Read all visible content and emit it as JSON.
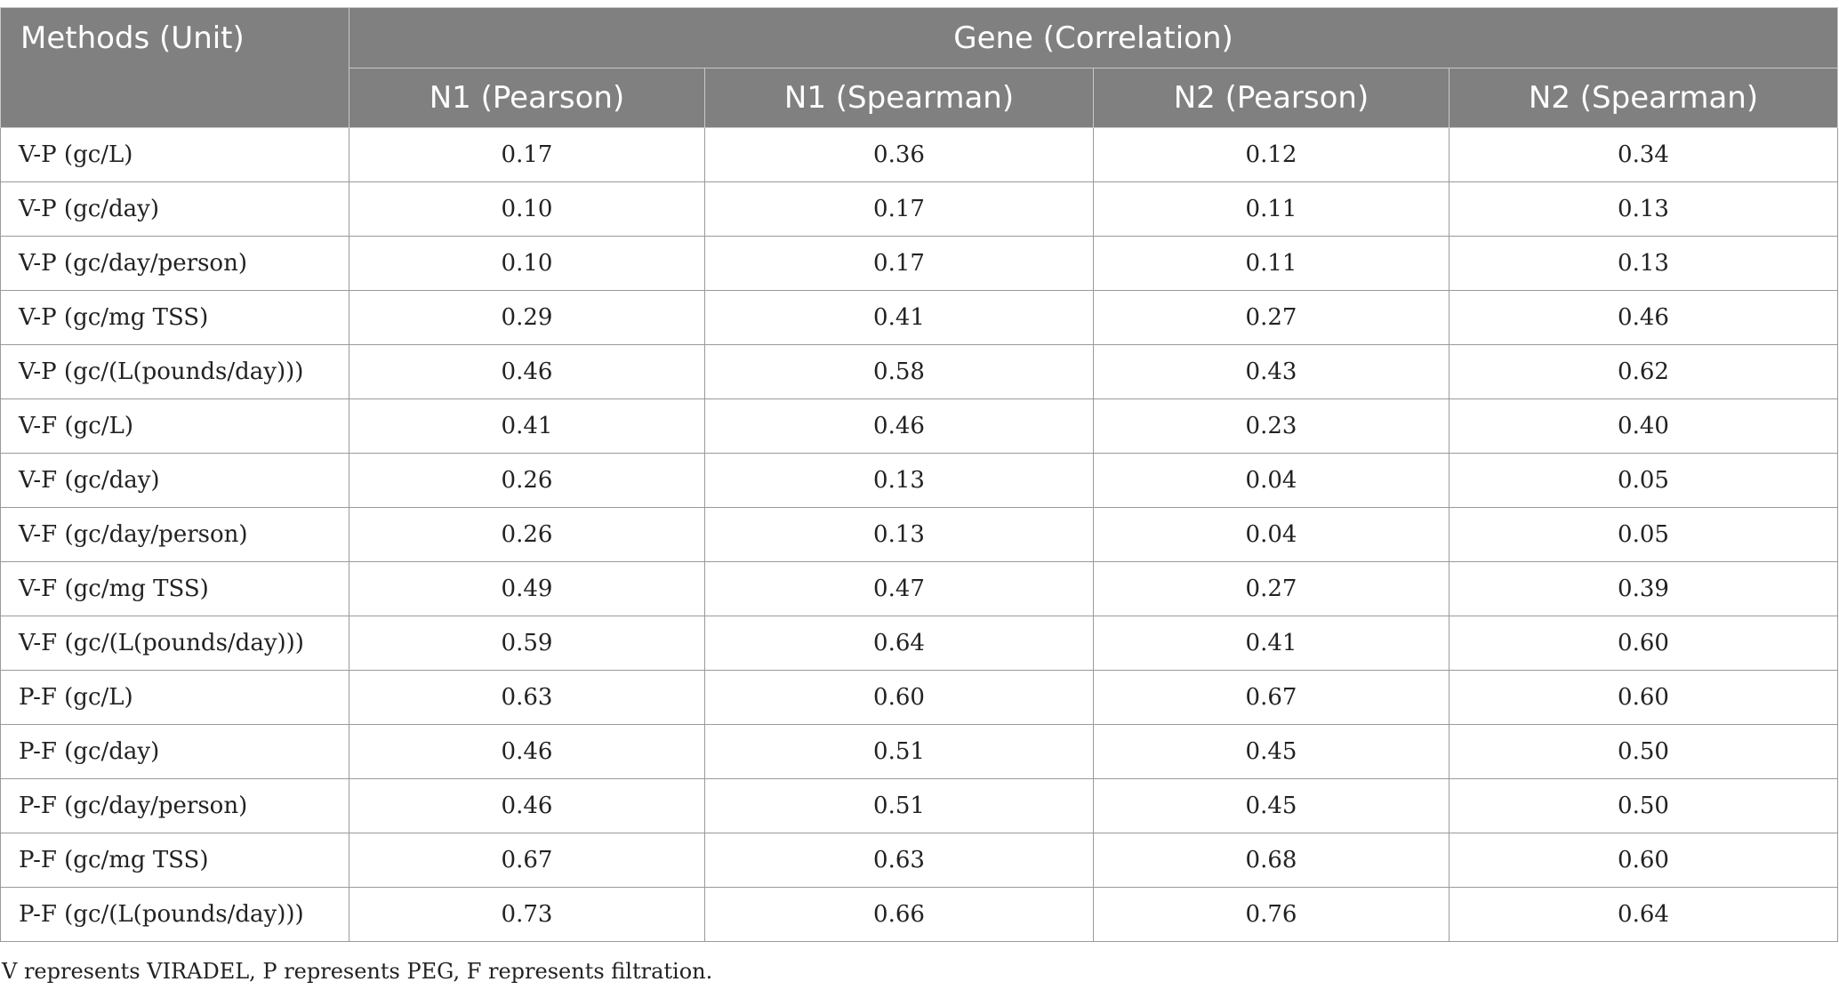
{
  "table": {
    "header": {
      "methods_label": "Methods (Unit)",
      "group_label": "Gene (Correlation)",
      "columns": [
        "N1 (Pearson)",
        "N1 (Spearman)",
        "N2 (Pearson)",
        "N2 (Spearman)"
      ]
    },
    "rows": [
      {
        "label": "V-P (gc/L)",
        "values": [
          "0.17",
          "0.36",
          "0.12",
          "0.34"
        ]
      },
      {
        "label": "V-P (gc/day)",
        "values": [
          "0.10",
          "0.17",
          "0.11",
          "0.13"
        ]
      },
      {
        "label": "V-P (gc/day/person)",
        "values": [
          "0.10",
          "0.17",
          "0.11",
          "0.13"
        ]
      },
      {
        "label": "V-P (gc/mg TSS)",
        "values": [
          "0.29",
          "0.41",
          "0.27",
          "0.46"
        ]
      },
      {
        "label": "V-P (gc/(L(pounds/day)))",
        "values": [
          "0.46",
          "0.58",
          "0.43",
          "0.62"
        ]
      },
      {
        "label": "V-F (gc/L)",
        "values": [
          "0.41",
          "0.46",
          "0.23",
          "0.40"
        ]
      },
      {
        "label": "V-F (gc/day)",
        "values": [
          "0.26",
          "0.13",
          "0.04",
          "0.05"
        ]
      },
      {
        "label": "V-F (gc/day/person)",
        "values": [
          "0.26",
          "0.13",
          "0.04",
          "0.05"
        ]
      },
      {
        "label": "V-F (gc/mg TSS)",
        "values": [
          "0.49",
          "0.47",
          "0.27",
          "0.39"
        ]
      },
      {
        "label": "V-F (gc/(L(pounds/day)))",
        "values": [
          "0.59",
          "0.64",
          "0.41",
          "0.60"
        ]
      },
      {
        "label": "P-F (gc/L)",
        "values": [
          "0.63",
          "0.60",
          "0.67",
          "0.60"
        ]
      },
      {
        "label": "P-F (gc/day)",
        "values": [
          "0.46",
          "0.51",
          "0.45",
          "0.50"
        ]
      },
      {
        "label": "P-F (gc/day/person)",
        "values": [
          "0.46",
          "0.51",
          "0.45",
          "0.50"
        ]
      },
      {
        "label": "P-F (gc/mg TSS)",
        "values": [
          "0.67",
          "0.63",
          "0.68",
          "0.60"
        ]
      },
      {
        "label": "P-F (gc/(L(pounds/day)))",
        "values": [
          "0.73",
          "0.66",
          "0.76",
          "0.64"
        ]
      }
    ]
  },
  "footnote": "V represents VIRADEL, P represents PEG, F represents filtration."
}
